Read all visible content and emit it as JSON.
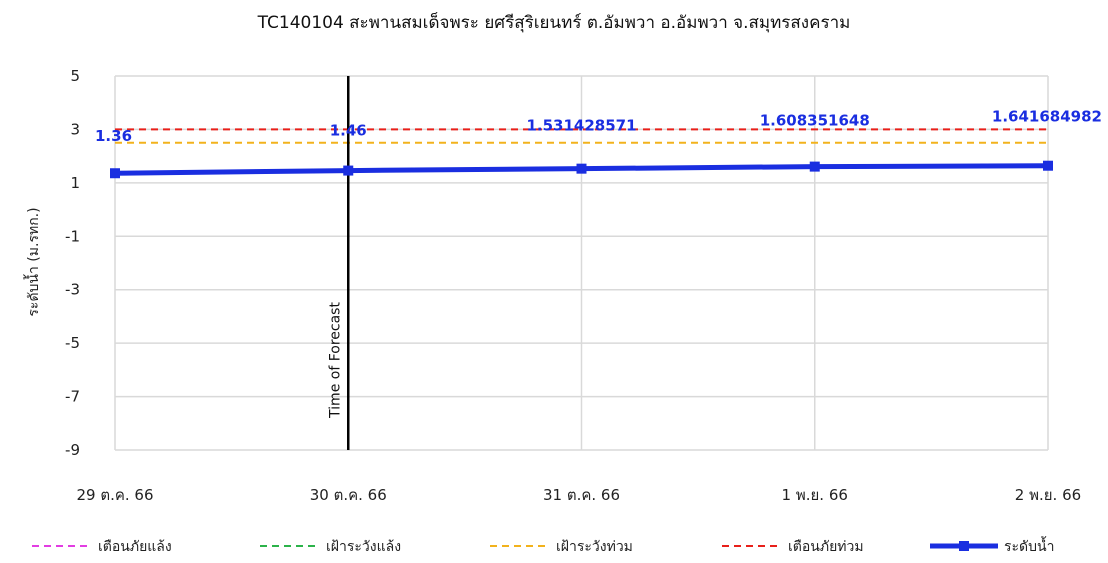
{
  "chart_data": {
    "type": "line",
    "title": "TC140104 สะพานสมเด็จพระ ยศรีสุริเยนทร์ ต.อัมพวา อ.อัมพวา จ.สมุทรสงคราม",
    "ylabel": "ระดับน้ำ (ม.รทก.)",
    "xlabel": "",
    "categories": [
      "29 ต.ค. 66",
      "30 ต.ค. 66",
      "31 ต.ค. 66",
      "1 พ.ย. 66",
      "2 พ.ย. 66"
    ],
    "x_ticks": [
      "29 ต.ค. 66",
      "30 ต.ค. 66",
      "31 ต.ค. 66",
      "1 พ.ย. 66",
      "2 พ.ย. 66"
    ],
    "ylim": [
      -9,
      5
    ],
    "y_ticks": [
      5,
      3,
      1,
      -1,
      -3,
      -5,
      -7,
      -9
    ],
    "grid": true,
    "legend_position": "bottom",
    "series": [
      {
        "name": "ระดับน้ำ",
        "color": "#1a2ee0",
        "points": [
          {
            "x": 0,
            "y": 1.36,
            "label": "1.36"
          },
          {
            "x": 1,
            "y": 1.46,
            "label": "1.46"
          },
          {
            "x": 2,
            "y": 1.531428571,
            "label": "1.531428571"
          },
          {
            "x": 3,
            "y": 1.608351648,
            "label": "1.608351648"
          },
          {
            "x": 4,
            "y": 1.641684982,
            "label": "1.641684982"
          }
        ]
      }
    ],
    "reference_lines": [
      {
        "name": "เตือนภัยแล้ง",
        "value": null,
        "color": "#e23de2",
        "style": "dashed"
      },
      {
        "name": "เฝ้าระวังแล้ง",
        "value": null,
        "color": "#2cb34a",
        "style": "dashed"
      },
      {
        "name": "เฝ้าระวังท่วม",
        "value": 2.5,
        "color": "#f2b21c",
        "style": "dashed"
      },
      {
        "name": "เตือนภัยท่วม",
        "value": 3.0,
        "color": "#e8201a",
        "style": "dashed"
      }
    ],
    "annotation": {
      "text": "Time of Forecast",
      "x": 1
    }
  }
}
